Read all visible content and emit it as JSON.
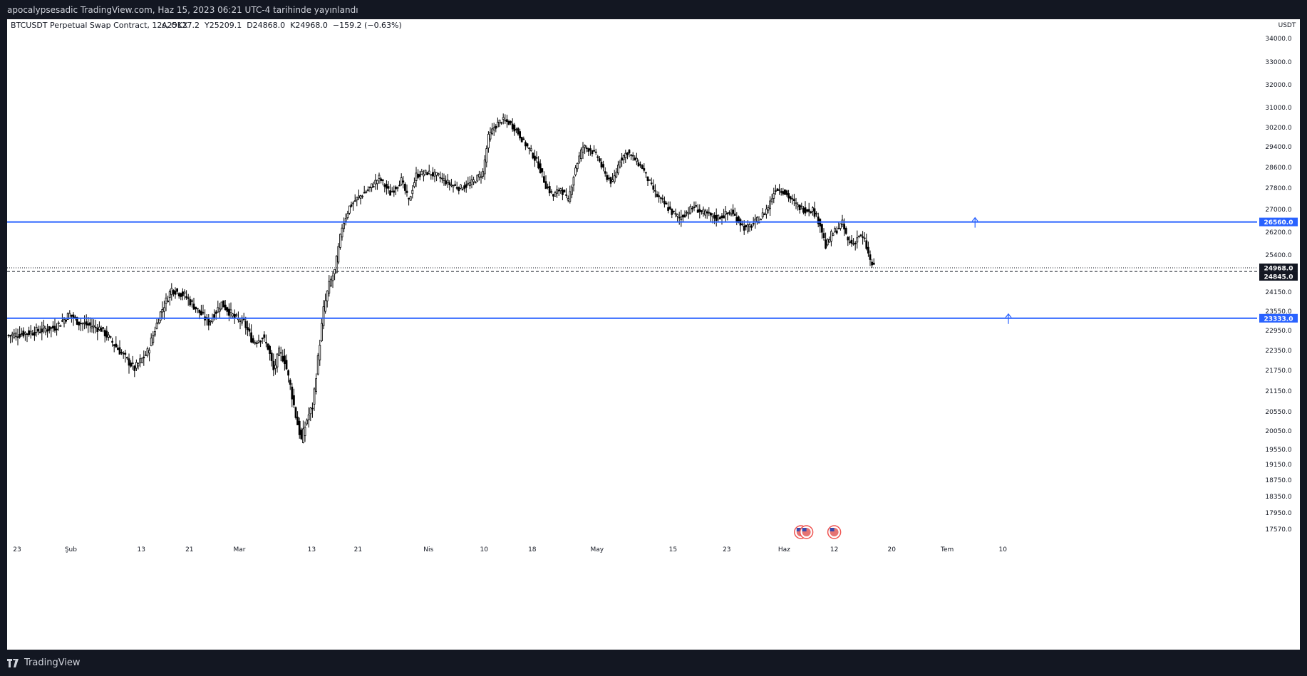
{
  "header": {
    "publish_line": "apocalypsesadic TradingView.com, Haz 15, 2023 06:21 UTC-4 tarihinde yayınlandı"
  },
  "legend": {
    "symbol": "BTCUSDT Perpetual Swap Contract, 12s, OKX",
    "ohlc": "A25127.2  Y25209.1  D24868.0  K24968.0  −159.2 (−0.63%)"
  },
  "footer": {
    "brand": "TradingView"
  },
  "colors": {
    "hline": "#2962ff",
    "candle": "#000000",
    "background": "#ffffff",
    "frame": "#131722"
  },
  "chart_data": {
    "type": "candlestick",
    "currency": "USDT",
    "price_scale_ticks": [
      "34000.0",
      "33000.0",
      "32000.0",
      "31000.0",
      "30200.0",
      "29400.0",
      "28600.0",
      "27800.0",
      "27000.0",
      "26200.0",
      "25400.0",
      "24150.0",
      "23550.0",
      "22950.0",
      "22350.0",
      "21750.0",
      "21150.0",
      "20550.0",
      "20050.0",
      "19550.0",
      "19150.0",
      "18750.0",
      "18350.0",
      "17950.0",
      "17570.0"
    ],
    "time_axis_labels": [
      "23",
      "Şub",
      "13",
      "21",
      "Mar",
      "13",
      "21",
      "Nis",
      "10",
      "18",
      "May",
      "15",
      "23",
      "Haz",
      "12",
      "20",
      "Tem",
      "10"
    ],
    "horizontal_lines": [
      {
        "price": 26560.0,
        "label": "26560.0",
        "style": "solid"
      },
      {
        "price": 23333.0,
        "label": "23333.0",
        "style": "solid"
      }
    ],
    "price_lines": [
      {
        "price": 24968.0,
        "label": "24968.0",
        "style": "dotted"
      },
      {
        "price": 24845.0,
        "label": "24845.0",
        "style": "dashed"
      }
    ],
    "close_path": [
      [
        0,
        22800
      ],
      [
        12,
        22900
      ],
      [
        25,
        23050
      ],
      [
        33,
        23450
      ],
      [
        38,
        23200
      ],
      [
        50,
        23000
      ],
      [
        62,
        22200
      ],
      [
        68,
        21800
      ],
      [
        75,
        22300
      ],
      [
        82,
        23500
      ],
      [
        88,
        24250
      ],
      [
        95,
        24050
      ],
      [
        101,
        23650
      ],
      [
        108,
        23200
      ],
      [
        115,
        23800
      ],
      [
        122,
        23350
      ],
      [
        127,
        23200
      ],
      [
        132,
        22600
      ],
      [
        137,
        22750
      ],
      [
        140,
        22450
      ],
      [
        143,
        21750
      ],
      [
        146,
        22300
      ],
      [
        149,
        22050
      ],
      [
        152,
        21300
      ],
      [
        155,
        20450
      ],
      [
        158,
        19800
      ],
      [
        161,
        20350
      ],
      [
        164,
        20700
      ],
      [
        167,
        22100
      ],
      [
        170,
        23600
      ],
      [
        173,
        24400
      ],
      [
        176,
        24850
      ],
      [
        180,
        26400
      ],
      [
        184,
        27100
      ],
      [
        188,
        27400
      ],
      [
        195,
        27800
      ],
      [
        200,
        28200
      ],
      [
        206,
        27600
      ],
      [
        212,
        28100
      ],
      [
        216,
        27300
      ],
      [
        220,
        28300
      ],
      [
        226,
        28400
      ],
      [
        232,
        28250
      ],
      [
        238,
        27950
      ],
      [
        244,
        27800
      ],
      [
        250,
        28000
      ],
      [
        256,
        28400
      ],
      [
        259,
        29800
      ],
      [
        262,
        30200
      ],
      [
        266,
        30500
      ],
      [
        270,
        30400
      ],
      [
        274,
        30100
      ],
      [
        278,
        29600
      ],
      [
        282,
        29200
      ],
      [
        286,
        28700
      ],
      [
        290,
        27900
      ],
      [
        294,
        27500
      ],
      [
        298,
        27800
      ],
      [
        302,
        27300
      ],
      [
        306,
        28600
      ],
      [
        310,
        29400
      ],
      [
        314,
        29300
      ],
      [
        318,
        29000
      ],
      [
        322,
        28300
      ],
      [
        326,
        28000
      ],
      [
        330,
        28900
      ],
      [
        334,
        29200
      ],
      [
        338,
        28900
      ],
      [
        342,
        28600
      ],
      [
        346,
        28000
      ],
      [
        350,
        27500
      ],
      [
        354,
        27200
      ],
      [
        358,
        26900
      ],
      [
        362,
        26700
      ],
      [
        366,
        26900
      ],
      [
        370,
        27100
      ],
      [
        374,
        26900
      ],
      [
        378,
        26800
      ],
      [
        382,
        26700
      ],
      [
        386,
        26800
      ],
      [
        390,
        26900
      ],
      [
        394,
        26600
      ],
      [
        398,
        26300
      ],
      [
        402,
        26500
      ],
      [
        406,
        26700
      ],
      [
        410,
        27100
      ],
      [
        414,
        27800
      ],
      [
        418,
        27700
      ],
      [
        422,
        27400
      ],
      [
        426,
        27100
      ],
      [
        430,
        27000
      ],
      [
        434,
        27000
      ],
      [
        438,
        26500
      ],
      [
        441,
        25700
      ],
      [
        444,
        26100
      ],
      [
        447,
        26300
      ],
      [
        450,
        26500
      ],
      [
        453,
        25900
      ],
      [
        456,
        25800
      ],
      [
        459,
        26100
      ],
      [
        462,
        25900
      ],
      [
        465,
        25200
      ],
      [
        467,
        24968
      ]
    ],
    "last_price": 24968.0,
    "events": [
      {
        "bar": 428,
        "kind": "economic-event-us"
      },
      {
        "bar": 431,
        "kind": "economic-event-us"
      },
      {
        "bar": 446,
        "kind": "economic-event-us"
      }
    ],
    "alerts": [
      {
        "bar": 522,
        "price": 26560.0
      },
      {
        "bar": 540,
        "price": 23333.0
      }
    ]
  }
}
